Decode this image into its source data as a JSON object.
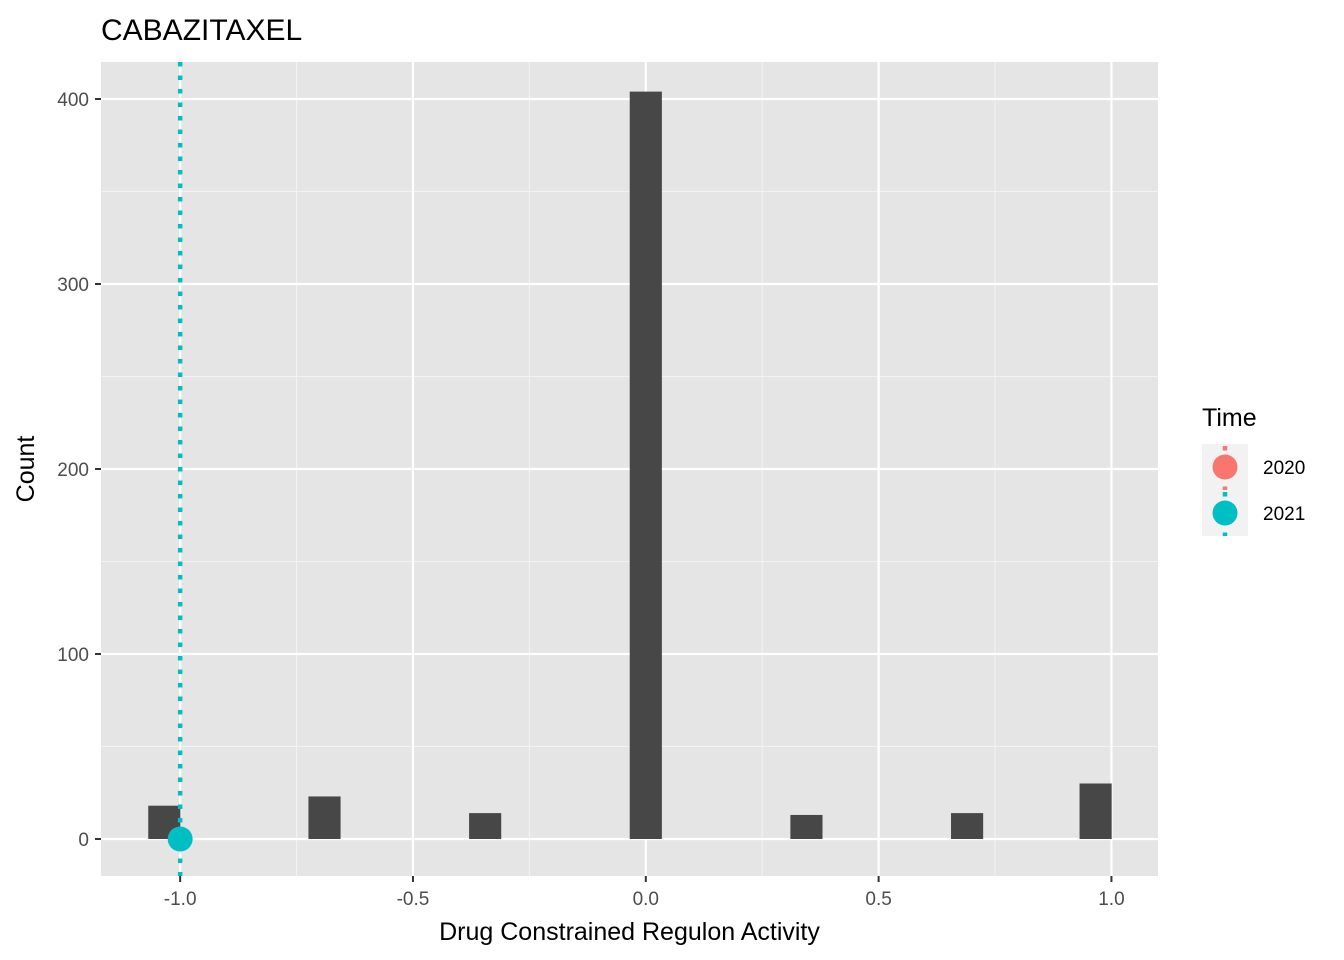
{
  "chart_data": {
    "type": "bar",
    "title": "CABAZITAXEL",
    "xlabel": "Drug Constrained Regulon Activity",
    "ylabel": "Count",
    "xlim": [
      -1.17,
      1.1
    ],
    "ylim": [
      -20,
      420
    ],
    "x_ticks": [
      -1.0,
      -0.5,
      0.0,
      0.5,
      1.0
    ],
    "x_tick_labels": [
      "-1.0",
      "-0.5",
      "0.0",
      "0.5",
      "1.0"
    ],
    "y_ticks": [
      0,
      100,
      200,
      300,
      400
    ],
    "y_tick_labels": [
      "0",
      "100",
      "200",
      "300",
      "400"
    ],
    "bin_width": 0.069,
    "bars": [
      {
        "x": -1.034,
        "count": 18
      },
      {
        "x": -0.69,
        "count": 23
      },
      {
        "x": -0.345,
        "count": 14
      },
      {
        "x": 0.0,
        "count": 404
      },
      {
        "x": 0.345,
        "count": 13
      },
      {
        "x": 0.69,
        "count": 14
      },
      {
        "x": 0.966,
        "count": 30
      }
    ],
    "bar_color": "#474747",
    "panel_background": "#e5e5e5",
    "grid": true,
    "vlines": [
      {
        "series": "2021",
        "x": -1.0,
        "linetype": "dotted"
      }
    ],
    "points": [
      {
        "series": "2021",
        "x": -1.0,
        "y": 0
      }
    ],
    "legend": {
      "title": "Time",
      "position": "right",
      "items": [
        {
          "label": "2020",
          "color": "#F8766D"
        },
        {
          "label": "2021",
          "color": "#00BFC4"
        }
      ]
    }
  }
}
